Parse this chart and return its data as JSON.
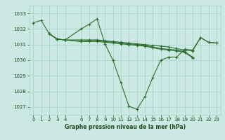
{
  "background_color": "#cbe8e2",
  "grid_color": "#a8d5c8",
  "line_color": "#2d6e2d",
  "text_color": "#1a4a1a",
  "xlabel": "Graphe pression niveau de la mer (hPa)",
  "ylim": [
    1026.5,
    1033.5
  ],
  "xlim": [
    -0.5,
    23.5
  ],
  "yticks": [
    1027,
    1028,
    1029,
    1030,
    1031,
    1032,
    1033
  ],
  "xticks": [
    0,
    1,
    2,
    3,
    4,
    6,
    7,
    8,
    9,
    10,
    11,
    12,
    13,
    14,
    15,
    16,
    17,
    18,
    19,
    20,
    21,
    22,
    23
  ],
  "s1_x": [
    0,
    1,
    2,
    3,
    4,
    6,
    7,
    8,
    9,
    10,
    11,
    12,
    13,
    14,
    15,
    16,
    17,
    18,
    19,
    20,
    21,
    22,
    23
  ],
  "s1_y": [
    1032.4,
    1032.55,
    1031.7,
    1031.35,
    1031.3,
    1032.0,
    1032.3,
    1032.65,
    1031.05,
    1030.0,
    1028.55,
    1027.05,
    1026.85,
    1027.65,
    1028.9,
    1030.0,
    1030.2,
    1030.2,
    1030.7,
    1030.65,
    1031.45,
    1031.15,
    1031.1
  ],
  "s2_x": [
    2,
    3,
    4,
    6,
    7,
    8,
    9,
    10,
    11,
    12,
    13,
    14,
    15,
    16,
    17,
    18,
    19,
    20,
    21,
    22,
    23
  ],
  "s2_y": [
    1031.7,
    1031.35,
    1031.3,
    1031.3,
    1031.3,
    1031.3,
    1031.25,
    1031.2,
    1031.15,
    1031.1,
    1031.05,
    1031.0,
    1030.95,
    1030.9,
    1030.85,
    1030.75,
    1030.65,
    1030.6,
    1031.45,
    1031.15,
    1031.1
  ],
  "s3_x": [
    2,
    3,
    4,
    6,
    7,
    8,
    9,
    10,
    11,
    12,
    13,
    14,
    15,
    16,
    17,
    18,
    19,
    20
  ],
  "s3_y": [
    1031.7,
    1031.35,
    1031.3,
    1031.2,
    1031.25,
    1031.25,
    1031.2,
    1031.15,
    1031.1,
    1031.05,
    1031.0,
    1030.95,
    1030.85,
    1030.75,
    1030.7,
    1030.65,
    1030.55,
    1030.2
  ],
  "s4_x": [
    2,
    3,
    4,
    6,
    7,
    8,
    9,
    10,
    11,
    12,
    13,
    14,
    15,
    16,
    17,
    18,
    19,
    20
  ],
  "s4_y": [
    1031.7,
    1031.35,
    1031.3,
    1031.2,
    1031.2,
    1031.2,
    1031.15,
    1031.1,
    1031.05,
    1031.0,
    1030.95,
    1030.9,
    1030.8,
    1030.7,
    1030.65,
    1030.6,
    1030.5,
    1030.15
  ]
}
